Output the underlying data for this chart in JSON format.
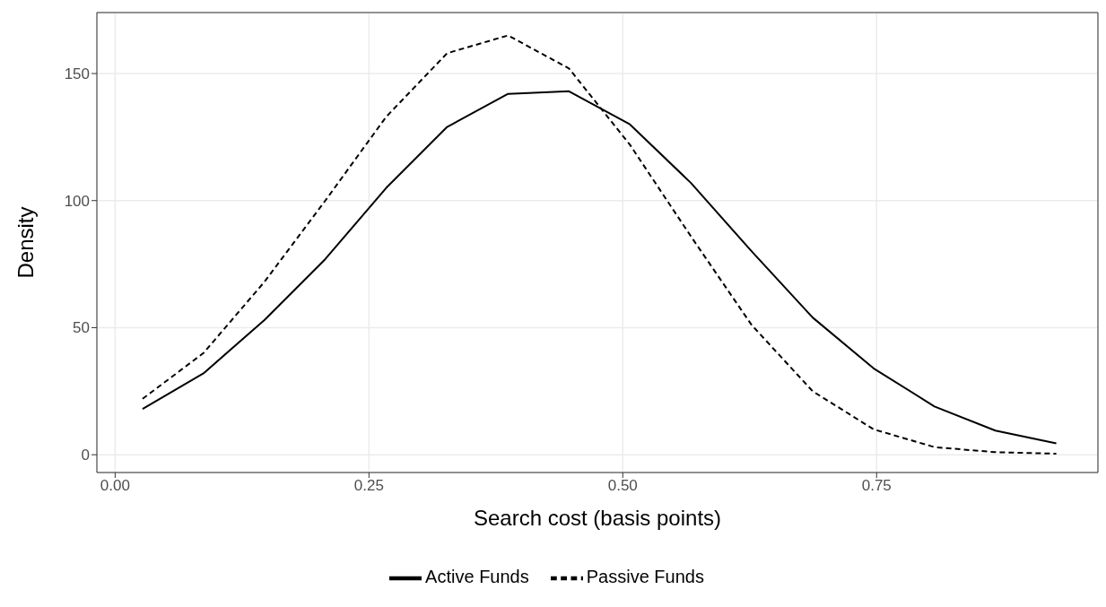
{
  "chart_data": {
    "type": "line",
    "xlabel": "Search cost (basis points)",
    "ylabel": "Density",
    "x": [
      0.027,
      0.087,
      0.147,
      0.207,
      0.267,
      0.327,
      0.387,
      0.447,
      0.507,
      0.567,
      0.627,
      0.687,
      0.747,
      0.807,
      0.867,
      0.927
    ],
    "series": [
      {
        "name": "Active Funds",
        "color": "#000000",
        "line_style": "solid",
        "values": [
          18,
          32,
          53,
          77,
          105,
          129,
          142,
          143,
          130,
          107,
          80,
          54,
          34,
          19,
          9.5,
          4.5
        ]
      },
      {
        "name": "Passive Funds",
        "color": "#000000",
        "line_style": "dashed",
        "values": [
          22,
          40,
          68,
          100,
          133,
          158,
          165,
          152,
          122,
          86,
          51,
          25,
          10,
          3,
          1,
          0.4
        ]
      }
    ],
    "xlim": [
      -0.018,
      0.968
    ],
    "xticks": [
      {
        "value": 0,
        "label": "0.00"
      },
      0.25,
      {
        "value": 0.5,
        "label": "0.50"
      },
      0.75
    ],
    "ylim": [
      -7,
      174
    ],
    "yticks": [
      0,
      50,
      100,
      150
    ],
    "grid": true,
    "legend": "bottom",
    "marker": "none"
  }
}
